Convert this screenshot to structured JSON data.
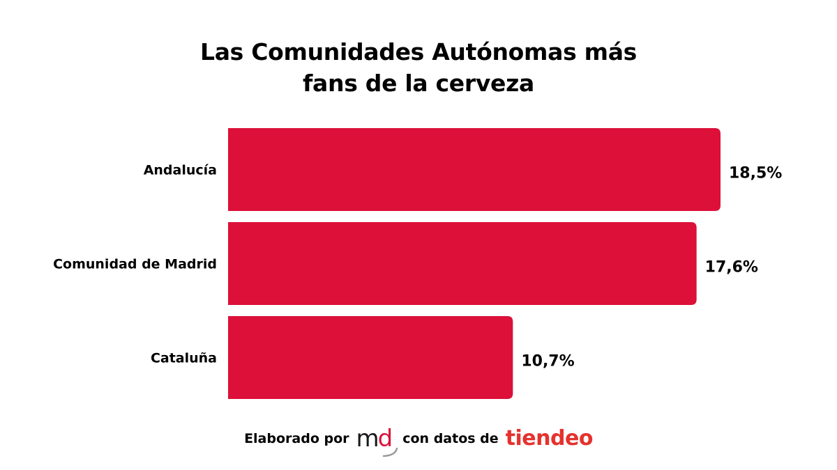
{
  "title_lines": [
    "Las Comunidades Autónomas más",
    "fans de la cerveza"
  ],
  "chart_data": {
    "type": "bar",
    "orientation": "horizontal",
    "title": "Las Comunidades Autónomas más fans de la cerveza",
    "categories": [
      "Andalucía",
      "Comunidad de Madrid",
      "Cataluña"
    ],
    "values": [
      18.5,
      17.6,
      10.7
    ],
    "value_labels": [
      "18,5%",
      "17,6%",
      "10,7%"
    ],
    "xlabel": "",
    "ylabel": "",
    "grid": false,
    "legend": "none",
    "bar_color": "#dc1039"
  },
  "footer": {
    "prefix": "Elaborado por",
    "middle": "con datos de",
    "logo_md_m": "m",
    "logo_md_d": "d",
    "logo_tiendeo": "tiendeo"
  },
  "colors": {
    "bar": "#dc1039",
    "md_dark": "#1a1a1a",
    "md_red": "#dc1039",
    "tiendeo": "#e5322d"
  }
}
